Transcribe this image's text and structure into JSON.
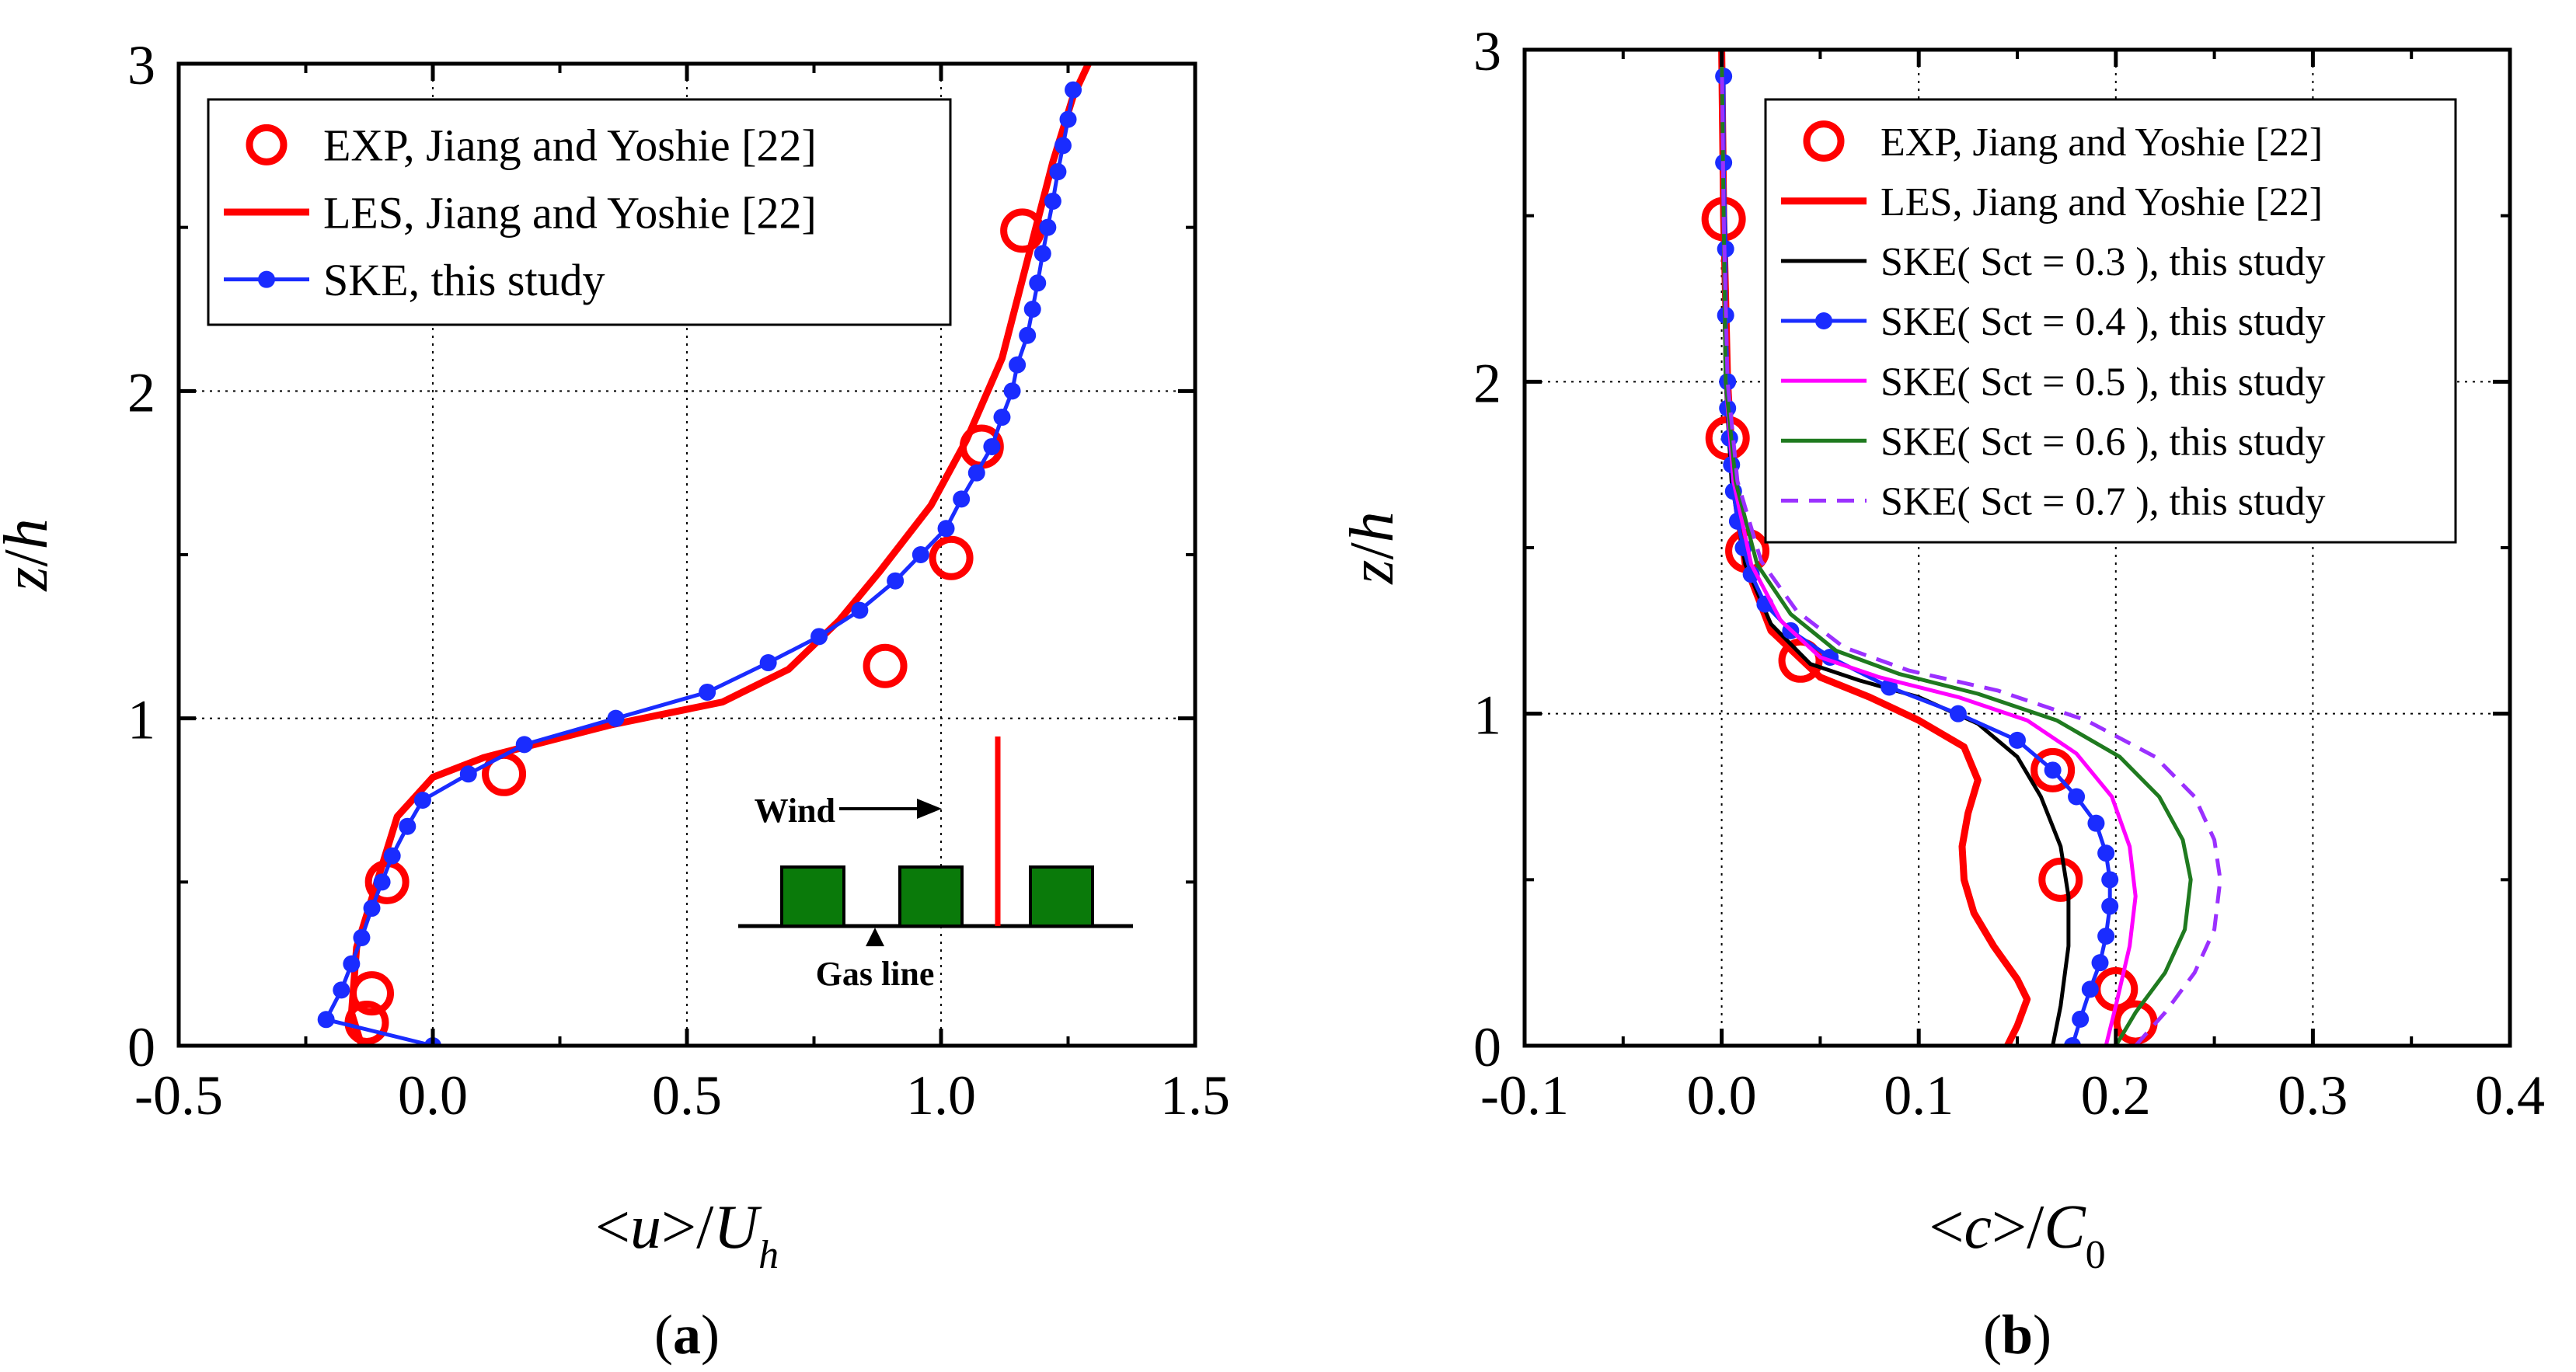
{
  "colors": {
    "exp": "#ff0000",
    "les": "#ff0000",
    "ske": "#1a2cff",
    "sct03": "#000000",
    "sct04": "#1a2cff",
    "sct05": "#ff00ff",
    "sct06": "#1f7a1f",
    "sct07": "#9b30ff",
    "building": "#0a7a0a"
  },
  "chart_data": [
    {
      "type": "line",
      "panel_label": "(a)",
      "panel_letter": "a",
      "xlabel": "<u>/U_h",
      "ylabel": "z/h",
      "xlim": [
        -0.5,
        1.5
      ],
      "ylim": [
        0,
        3
      ],
      "xticks": [
        "-0.5",
        "0.0",
        "0.5",
        "1.0",
        "1.5"
      ],
      "yticks": [
        "0",
        "1",
        "2",
        "3"
      ],
      "grid": true,
      "legend_position": "top-left",
      "series": [
        {
          "name": "EXP, Jiang and Yoshie [22]",
          "style": "open-circle",
          "points": [
            [
              -0.13,
              0.07
            ],
            [
              -0.12,
              0.16
            ],
            [
              -0.09,
              0.5
            ],
            [
              0.14,
              0.83
            ],
            [
              0.89,
              1.16
            ],
            [
              1.02,
              1.49
            ],
            [
              1.08,
              1.83
            ],
            [
              1.16,
              2.49
            ]
          ]
        },
        {
          "name": "LES, Jiang and Yoshie [22]",
          "style": "line",
          "points": [
            [
              -0.14,
              0.0
            ],
            [
              -0.16,
              0.1
            ],
            [
              -0.15,
              0.3
            ],
            [
              -0.11,
              0.5
            ],
            [
              -0.07,
              0.7
            ],
            [
              0.0,
              0.82
            ],
            [
              0.1,
              0.88
            ],
            [
              0.35,
              0.98
            ],
            [
              0.57,
              1.05
            ],
            [
              0.7,
              1.15
            ],
            [
              0.8,
              1.3
            ],
            [
              0.88,
              1.45
            ],
            [
              0.98,
              1.65
            ],
            [
              1.05,
              1.85
            ],
            [
              1.12,
              2.1
            ],
            [
              1.17,
              2.4
            ],
            [
              1.22,
              2.7
            ],
            [
              1.26,
              2.9
            ],
            [
              1.29,
              3.0
            ]
          ]
        },
        {
          "name": "SKE, this study",
          "style": "line-dot",
          "points": [
            [
              0.0,
              0.0
            ],
            [
              -0.21,
              0.08
            ],
            [
              -0.18,
              0.17
            ],
            [
              -0.16,
              0.25
            ],
            [
              -0.14,
              0.33
            ],
            [
              -0.12,
              0.42
            ],
            [
              -0.1,
              0.5
            ],
            [
              -0.08,
              0.58
            ],
            [
              -0.05,
              0.67
            ],
            [
              -0.02,
              0.75
            ],
            [
              0.07,
              0.83
            ],
            [
              0.18,
              0.92
            ],
            [
              0.36,
              1.0
            ],
            [
              0.54,
              1.08
            ],
            [
              0.66,
              1.17
            ],
            [
              0.76,
              1.25
            ],
            [
              0.84,
              1.33
            ],
            [
              0.91,
              1.42
            ],
            [
              0.96,
              1.5
            ],
            [
              1.01,
              1.58
            ],
            [
              1.04,
              1.67
            ],
            [
              1.07,
              1.75
            ],
            [
              1.1,
              1.83
            ],
            [
              1.12,
              1.92
            ],
            [
              1.14,
              2.0
            ],
            [
              1.15,
              2.08
            ],
            [
              1.17,
              2.17
            ],
            [
              1.18,
              2.25
            ],
            [
              1.19,
              2.33
            ],
            [
              1.2,
              2.42
            ],
            [
              1.21,
              2.5
            ],
            [
              1.22,
              2.58
            ],
            [
              1.23,
              2.67
            ],
            [
              1.24,
              2.75
            ],
            [
              1.25,
              2.83
            ],
            [
              1.26,
              2.92
            ]
          ]
        }
      ],
      "inset": {
        "wind_label": "Wind",
        "gas_label": "Gas line"
      }
    },
    {
      "type": "line",
      "panel_label": "(b)",
      "panel_letter": "b",
      "xlabel": "<c>/C_0",
      "ylabel": "z/h",
      "xlim": [
        -0.1,
        0.4
      ],
      "ylim": [
        0,
        3
      ],
      "xticks": [
        "-0.1",
        "0.0",
        "0.1",
        "0.2",
        "0.3",
        "0.4"
      ],
      "yticks": [
        "0",
        "1",
        "2",
        "3"
      ],
      "grid": true,
      "legend_position": "top-right",
      "series": [
        {
          "name": "EXP, Jiang and Yoshie [22]",
          "style": "open-circle",
          "points": [
            [
              0.21,
              0.07
            ],
            [
              0.2,
              0.17
            ],
            [
              0.172,
              0.5
            ],
            [
              0.168,
              0.83
            ],
            [
              0.04,
              1.16
            ],
            [
              0.013,
              1.49
            ],
            [
              0.003,
              1.83
            ],
            [
              0.001,
              2.49
            ]
          ]
        },
        {
          "name": "LES, Jiang and Yoshie [22]",
          "style": "line",
          "points": [
            [
              0.145,
              0.0
            ],
            [
              0.15,
              0.06
            ],
            [
              0.155,
              0.14
            ],
            [
              0.15,
              0.2
            ],
            [
              0.138,
              0.3
            ],
            [
              0.128,
              0.4
            ],
            [
              0.123,
              0.5
            ],
            [
              0.122,
              0.6
            ],
            [
              0.125,
              0.7
            ],
            [
              0.13,
              0.8
            ],
            [
              0.123,
              0.9
            ],
            [
              0.1,
              0.98
            ],
            [
              0.075,
              1.05
            ],
            [
              0.05,
              1.11
            ],
            [
              0.025,
              1.25
            ],
            [
              0.012,
              1.45
            ],
            [
              0.006,
              1.7
            ],
            [
              0.003,
              2.0
            ],
            [
              0.001,
              2.5
            ],
            [
              0.0,
              3.0
            ]
          ]
        },
        {
          "name": "SKE( Sct = 0.3 ), this study",
          "style": "line",
          "points": [
            [
              0.168,
              0.0
            ],
            [
              0.172,
              0.12
            ],
            [
              0.176,
              0.3
            ],
            [
              0.176,
              0.45
            ],
            [
              0.172,
              0.6
            ],
            [
              0.162,
              0.75
            ],
            [
              0.15,
              0.87
            ],
            [
              0.13,
              0.97
            ],
            [
              0.1,
              1.05
            ],
            [
              0.07,
              1.1
            ],
            [
              0.045,
              1.15
            ],
            [
              0.025,
              1.27
            ],
            [
              0.012,
              1.45
            ],
            [
              0.005,
              1.7
            ],
            [
              0.002,
              2.0
            ],
            [
              0.001,
              2.5
            ],
            [
              0.0,
              3.0
            ]
          ]
        },
        {
          "name": "SKE( Sct = 0.4 ), this study",
          "style": "line-dot",
          "points": [
            [
              0.178,
              0.0
            ],
            [
              0.182,
              0.08
            ],
            [
              0.187,
              0.17
            ],
            [
              0.192,
              0.25
            ],
            [
              0.195,
              0.33
            ],
            [
              0.197,
              0.42
            ],
            [
              0.197,
              0.5
            ],
            [
              0.195,
              0.58
            ],
            [
              0.19,
              0.67
            ],
            [
              0.18,
              0.75
            ],
            [
              0.168,
              0.83
            ],
            [
              0.15,
              0.92
            ],
            [
              0.12,
              1.0
            ],
            [
              0.085,
              1.08
            ],
            [
              0.055,
              1.17
            ],
            [
              0.035,
              1.25
            ],
            [
              0.022,
              1.33
            ],
            [
              0.015,
              1.42
            ],
            [
              0.011,
              1.5
            ],
            [
              0.008,
              1.58
            ],
            [
              0.006,
              1.67
            ],
            [
              0.005,
              1.75
            ],
            [
              0.004,
              1.83
            ],
            [
              0.003,
              1.92
            ],
            [
              0.003,
              2.0
            ],
            [
              0.002,
              2.2
            ],
            [
              0.002,
              2.4
            ],
            [
              0.001,
              2.66
            ],
            [
              0.001,
              2.92
            ]
          ]
        },
        {
          "name": "SKE( Sct = 0.5 ), this study",
          "style": "line",
          "points": [
            [
              0.195,
              0.0
            ],
            [
              0.2,
              0.12
            ],
            [
              0.207,
              0.3
            ],
            [
              0.21,
              0.45
            ],
            [
              0.207,
              0.6
            ],
            [
              0.198,
              0.75
            ],
            [
              0.18,
              0.88
            ],
            [
              0.155,
              0.98
            ],
            [
              0.12,
              1.05
            ],
            [
              0.08,
              1.11
            ],
            [
              0.05,
              1.17
            ],
            [
              0.03,
              1.28
            ],
            [
              0.015,
              1.45
            ],
            [
              0.006,
              1.7
            ],
            [
              0.002,
              2.0
            ],
            [
              0.001,
              2.5
            ],
            [
              0.0,
              3.0
            ]
          ]
        },
        {
          "name": "SKE( Sct = 0.6 ), this study",
          "style": "line",
          "points": [
            [
              0.2,
              0.0
            ],
            [
              0.21,
              0.1
            ],
            [
              0.225,
              0.22
            ],
            [
              0.235,
              0.35
            ],
            [
              0.238,
              0.5
            ],
            [
              0.234,
              0.62
            ],
            [
              0.222,
              0.75
            ],
            [
              0.202,
              0.87
            ],
            [
              0.17,
              0.98
            ],
            [
              0.13,
              1.06
            ],
            [
              0.09,
              1.12
            ],
            [
              0.058,
              1.19
            ],
            [
              0.035,
              1.3
            ],
            [
              0.018,
              1.45
            ],
            [
              0.007,
              1.7
            ],
            [
              0.002,
              2.0
            ],
            [
              0.001,
              2.5
            ],
            [
              0.0,
              3.0
            ]
          ]
        },
        {
          "name": "SKE( Sct = 0.7 ), this study",
          "style": "dashed",
          "points": [
            [
              0.21,
              0.0
            ],
            [
              0.225,
              0.1
            ],
            [
              0.24,
              0.22
            ],
            [
              0.25,
              0.35
            ],
            [
              0.253,
              0.5
            ],
            [
              0.25,
              0.62
            ],
            [
              0.24,
              0.75
            ],
            [
              0.22,
              0.87
            ],
            [
              0.185,
              0.98
            ],
            [
              0.14,
              1.07
            ],
            [
              0.095,
              1.13
            ],
            [
              0.062,
              1.2
            ],
            [
              0.038,
              1.31
            ],
            [
              0.02,
              1.46
            ],
            [
              0.008,
              1.7
            ],
            [
              0.003,
              2.0
            ],
            [
              0.001,
              2.5
            ],
            [
              0.0,
              3.0
            ]
          ]
        }
      ]
    }
  ]
}
